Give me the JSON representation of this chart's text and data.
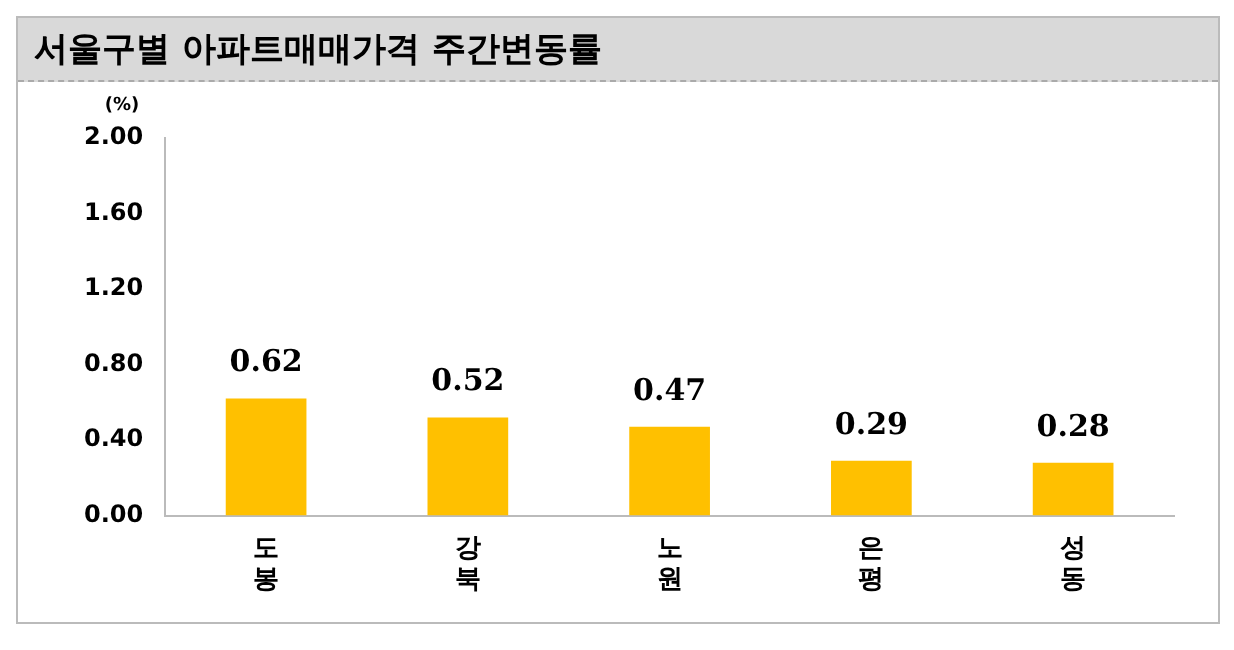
{
  "chart_data": {
    "type": "bar",
    "title": "서울구별 아파트매매가격 주간변동률",
    "ylabel": "(%)",
    "categories": [
      "도봉",
      "강북",
      "노원",
      "은평",
      "성동"
    ],
    "values": [
      0.62,
      0.52,
      0.47,
      0.29,
      0.28
    ],
    "color": "#ffc000",
    "ylim": [
      0,
      2
    ],
    "yticks": [
      {
        "value": 0,
        "label": "0.00"
      },
      {
        "value": 0.4,
        "label": "0.40"
      },
      {
        "value": 0.8,
        "label": "0.80"
      },
      {
        "value": 1.2,
        "label": "1.20"
      },
      {
        "value": 1.6,
        "label": "1.60"
      },
      {
        "value": 2,
        "label": "2.00"
      }
    ],
    "data_labels": true,
    "grid": false,
    "legend": false
  }
}
